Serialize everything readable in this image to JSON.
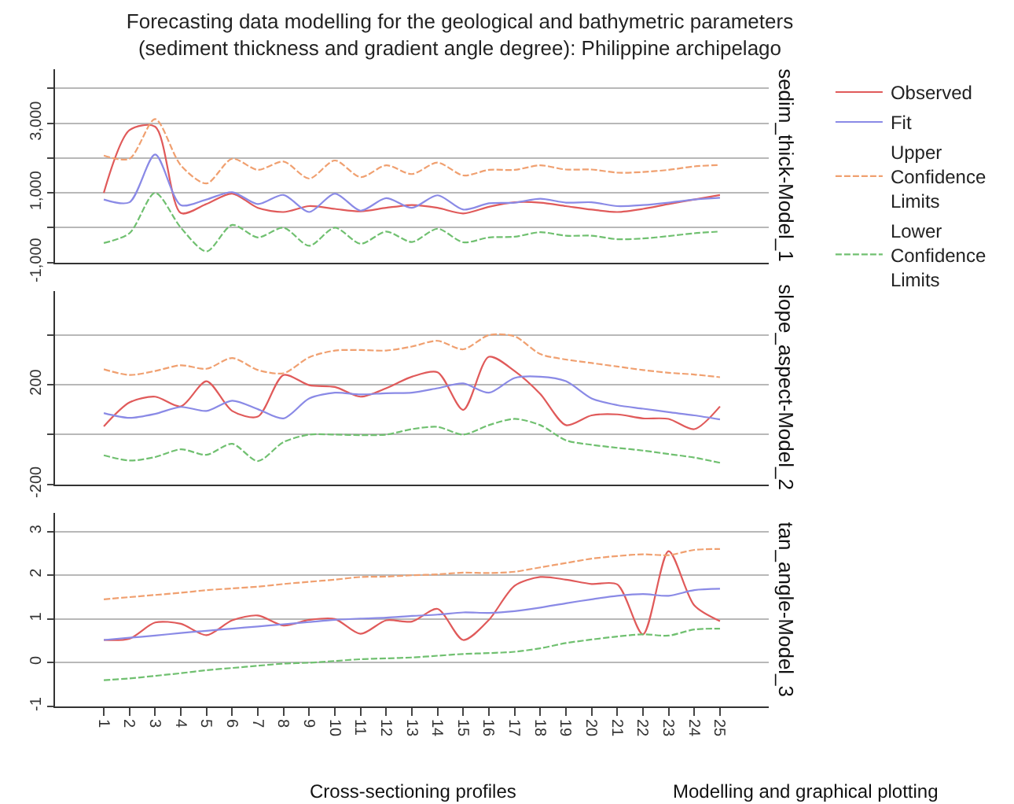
{
  "chart_data": [
    {
      "type": "line",
      "title": "Forecasting data modelling for the geological and bathymetric parameters\n(sediment thickness and gradient angle degree): Philippine archipelago",
      "ylabel": "sedim_thick-Model_1",
      "x": [
        1,
        2,
        3,
        4,
        5,
        6,
        7,
        8,
        9,
        10,
        11,
        12,
        13,
        14,
        15,
        16,
        17,
        18,
        19,
        20,
        21,
        22,
        23,
        24,
        25
      ],
      "xlim": [
        -0.9,
        26.9
      ],
      "ylim": [
        -1000,
        4550
      ],
      "yticks": [
        {
          "value": -1000,
          "label": "-1,000"
        },
        {
          "value": 0,
          "label": null
        },
        {
          "value": 1000,
          "label": "1,000"
        },
        {
          "value": 2000,
          "label": null
        },
        {
          "value": 3000,
          "label": "3,000"
        },
        {
          "value": 4000,
          "label": null
        }
      ],
      "tick_labels": "y",
      "grid": "y",
      "legend": "right",
      "marker": "none",
      "series": [
        {
          "name": "Observed",
          "color": "#e05a5a",
          "line_style": "solid",
          "values": [
            1000,
            2800,
            2900,
            420,
            680,
            980,
            570,
            450,
            620,
            540,
            470,
            570,
            650,
            570,
            410,
            600,
            730,
            720,
            620,
            520,
            450,
            540,
            680,
            810,
            940
          ]
        },
        {
          "name": "Fit",
          "color": "#8a8ae6",
          "line_style": "solid",
          "values": [
            810,
            730,
            2100,
            650,
            810,
            1020,
            680,
            940,
            450,
            980,
            490,
            850,
            570,
            930,
            520,
            700,
            720,
            830,
            720,
            730,
            620,
            650,
            720,
            810,
            860
          ]
        },
        {
          "name": "Upper Confidence Limits",
          "color": "#f0a070",
          "line_style": "dashed",
          "values": [
            2070,
            1980,
            3120,
            1790,
            1270,
            1980,
            1660,
            1900,
            1410,
            1930,
            1450,
            1790,
            1540,
            1870,
            1500,
            1660,
            1660,
            1790,
            1670,
            1670,
            1580,
            1600,
            1660,
            1760,
            1800
          ]
        },
        {
          "name": "Lower Confidence Limits",
          "color": "#70c070",
          "line_style": "dashed",
          "values": [
            -440,
            -160,
            1000,
            0,
            -680,
            80,
            -280,
            0,
            -520,
            0,
            -460,
            -110,
            -410,
            -30,
            -420,
            -280,
            -260,
            -130,
            -230,
            -230,
            -330,
            -310,
            -240,
            -160,
            -110
          ]
        }
      ]
    },
    {
      "type": "line",
      "ylabel": "slope_aspect-Model_2",
      "x": [
        1,
        2,
        3,
        4,
        5,
        6,
        7,
        8,
        9,
        10,
        11,
        12,
        13,
        14,
        15,
        16,
        17,
        18,
        19,
        20,
        21,
        22,
        23,
        24,
        25
      ],
      "xlim": [
        -0.9,
        26.9
      ],
      "ylim": [
        -200,
        575
      ],
      "yticks": [
        -200,
        {
          "value": 0,
          "label": null
        },
        200,
        {
          "value": 400,
          "label": null
        }
      ],
      "tick_labels": "y",
      "grid": "y",
      "marker": "none",
      "series": [
        {
          "color": "#e05a5a",
          "line_style": "solid",
          "values": [
            33,
            129,
            152,
            113,
            214,
            95,
            72,
            239,
            198,
            191,
            152,
            186,
            232,
            250,
            99,
            312,
            255,
            163,
            38,
            77,
            81,
            65,
            63,
            22,
            113
          ]
        },
        {
          "color": "#8a8ae6",
          "line_style": "solid",
          "values": [
            86,
            67,
            83,
            111,
            95,
            136,
            102,
            65,
            145,
            168,
            161,
            166,
            168,
            186,
            205,
            168,
            227,
            232,
            214,
            145,
            118,
            104,
            90,
            77,
            61
          ]
        },
        {
          "color": "#f0a070",
          "line_style": "dashed",
          "values": [
            262,
            239,
            255,
            278,
            264,
            307,
            259,
            246,
            310,
            337,
            339,
            337,
            353,
            376,
            342,
            399,
            394,
            323,
            301,
            287,
            273,
            259,
            248,
            241,
            230
          ]
        },
        {
          "color": "#70c070",
          "line_style": "dashed",
          "values": [
            -83,
            -104,
            -90,
            -59,
            -81,
            -37,
            -106,
            -30,
            0,
            0,
            -2,
            0,
            22,
            31,
            0,
            38,
            63,
            38,
            -23,
            -41,
            -53,
            -64,
            -78,
            -92,
            -113
          ]
        }
      ]
    },
    {
      "type": "line",
      "ylabel": "tan_angle-Model_3",
      "xlabel": "Cross-sectioning profiles",
      "annotations": [
        "Modelling and graphical plotting"
      ],
      "x": [
        1,
        2,
        3,
        4,
        5,
        6,
        7,
        8,
        9,
        10,
        11,
        12,
        13,
        14,
        15,
        16,
        17,
        18,
        19,
        20,
        21,
        22,
        23,
        24,
        25
      ],
      "xlim": [
        -0.9,
        26.9
      ],
      "xticks": [
        1,
        2,
        3,
        4,
        5,
        6,
        7,
        8,
        9,
        10,
        11,
        12,
        13,
        14,
        15,
        16,
        17,
        18,
        19,
        20,
        21,
        22,
        23,
        24,
        25
      ],
      "ylim": [
        -1,
        3.42
      ],
      "yticks": [
        -1,
        0,
        1,
        2,
        3
      ],
      "grid": "y",
      "marker": "none",
      "series": [
        {
          "color": "#e05a5a",
          "line_style": "solid",
          "values": [
            0.52,
            0.55,
            0.92,
            0.89,
            0.63,
            0.97,
            1.08,
            0.85,
            0.98,
            1.0,
            0.66,
            0.97,
            0.94,
            1.23,
            0.52,
            0.98,
            1.76,
            1.96,
            1.9,
            1.8,
            1.79,
            0.65,
            2.55,
            1.31,
            0.95
          ]
        },
        {
          "color": "#8a8ae6",
          "line_style": "solid",
          "values": [
            0.52,
            0.57,
            0.62,
            0.68,
            0.73,
            0.78,
            0.83,
            0.88,
            0.93,
            0.98,
            1.01,
            1.03,
            1.07,
            1.1,
            1.15,
            1.14,
            1.18,
            1.26,
            1.36,
            1.45,
            1.53,
            1.57,
            1.53,
            1.66,
            1.69
          ]
        },
        {
          "color": "#f0a070",
          "line_style": "dashed",
          "values": [
            1.45,
            1.5,
            1.55,
            1.6,
            1.66,
            1.7,
            1.74,
            1.8,
            1.85,
            1.9,
            1.96,
            1.97,
            2.0,
            2.02,
            2.06,
            2.05,
            2.08,
            2.18,
            2.28,
            2.38,
            2.44,
            2.48,
            2.46,
            2.58,
            2.6
          ]
        },
        {
          "color": "#70c070",
          "line_style": "dashed",
          "values": [
            -0.4,
            -0.36,
            -0.3,
            -0.24,
            -0.17,
            -0.12,
            -0.07,
            -0.02,
            0.0,
            0.04,
            0.08,
            0.1,
            0.12,
            0.16,
            0.2,
            0.22,
            0.25,
            0.33,
            0.45,
            0.53,
            0.6,
            0.65,
            0.62,
            0.76,
            0.78
          ]
        }
      ]
    }
  ]
}
